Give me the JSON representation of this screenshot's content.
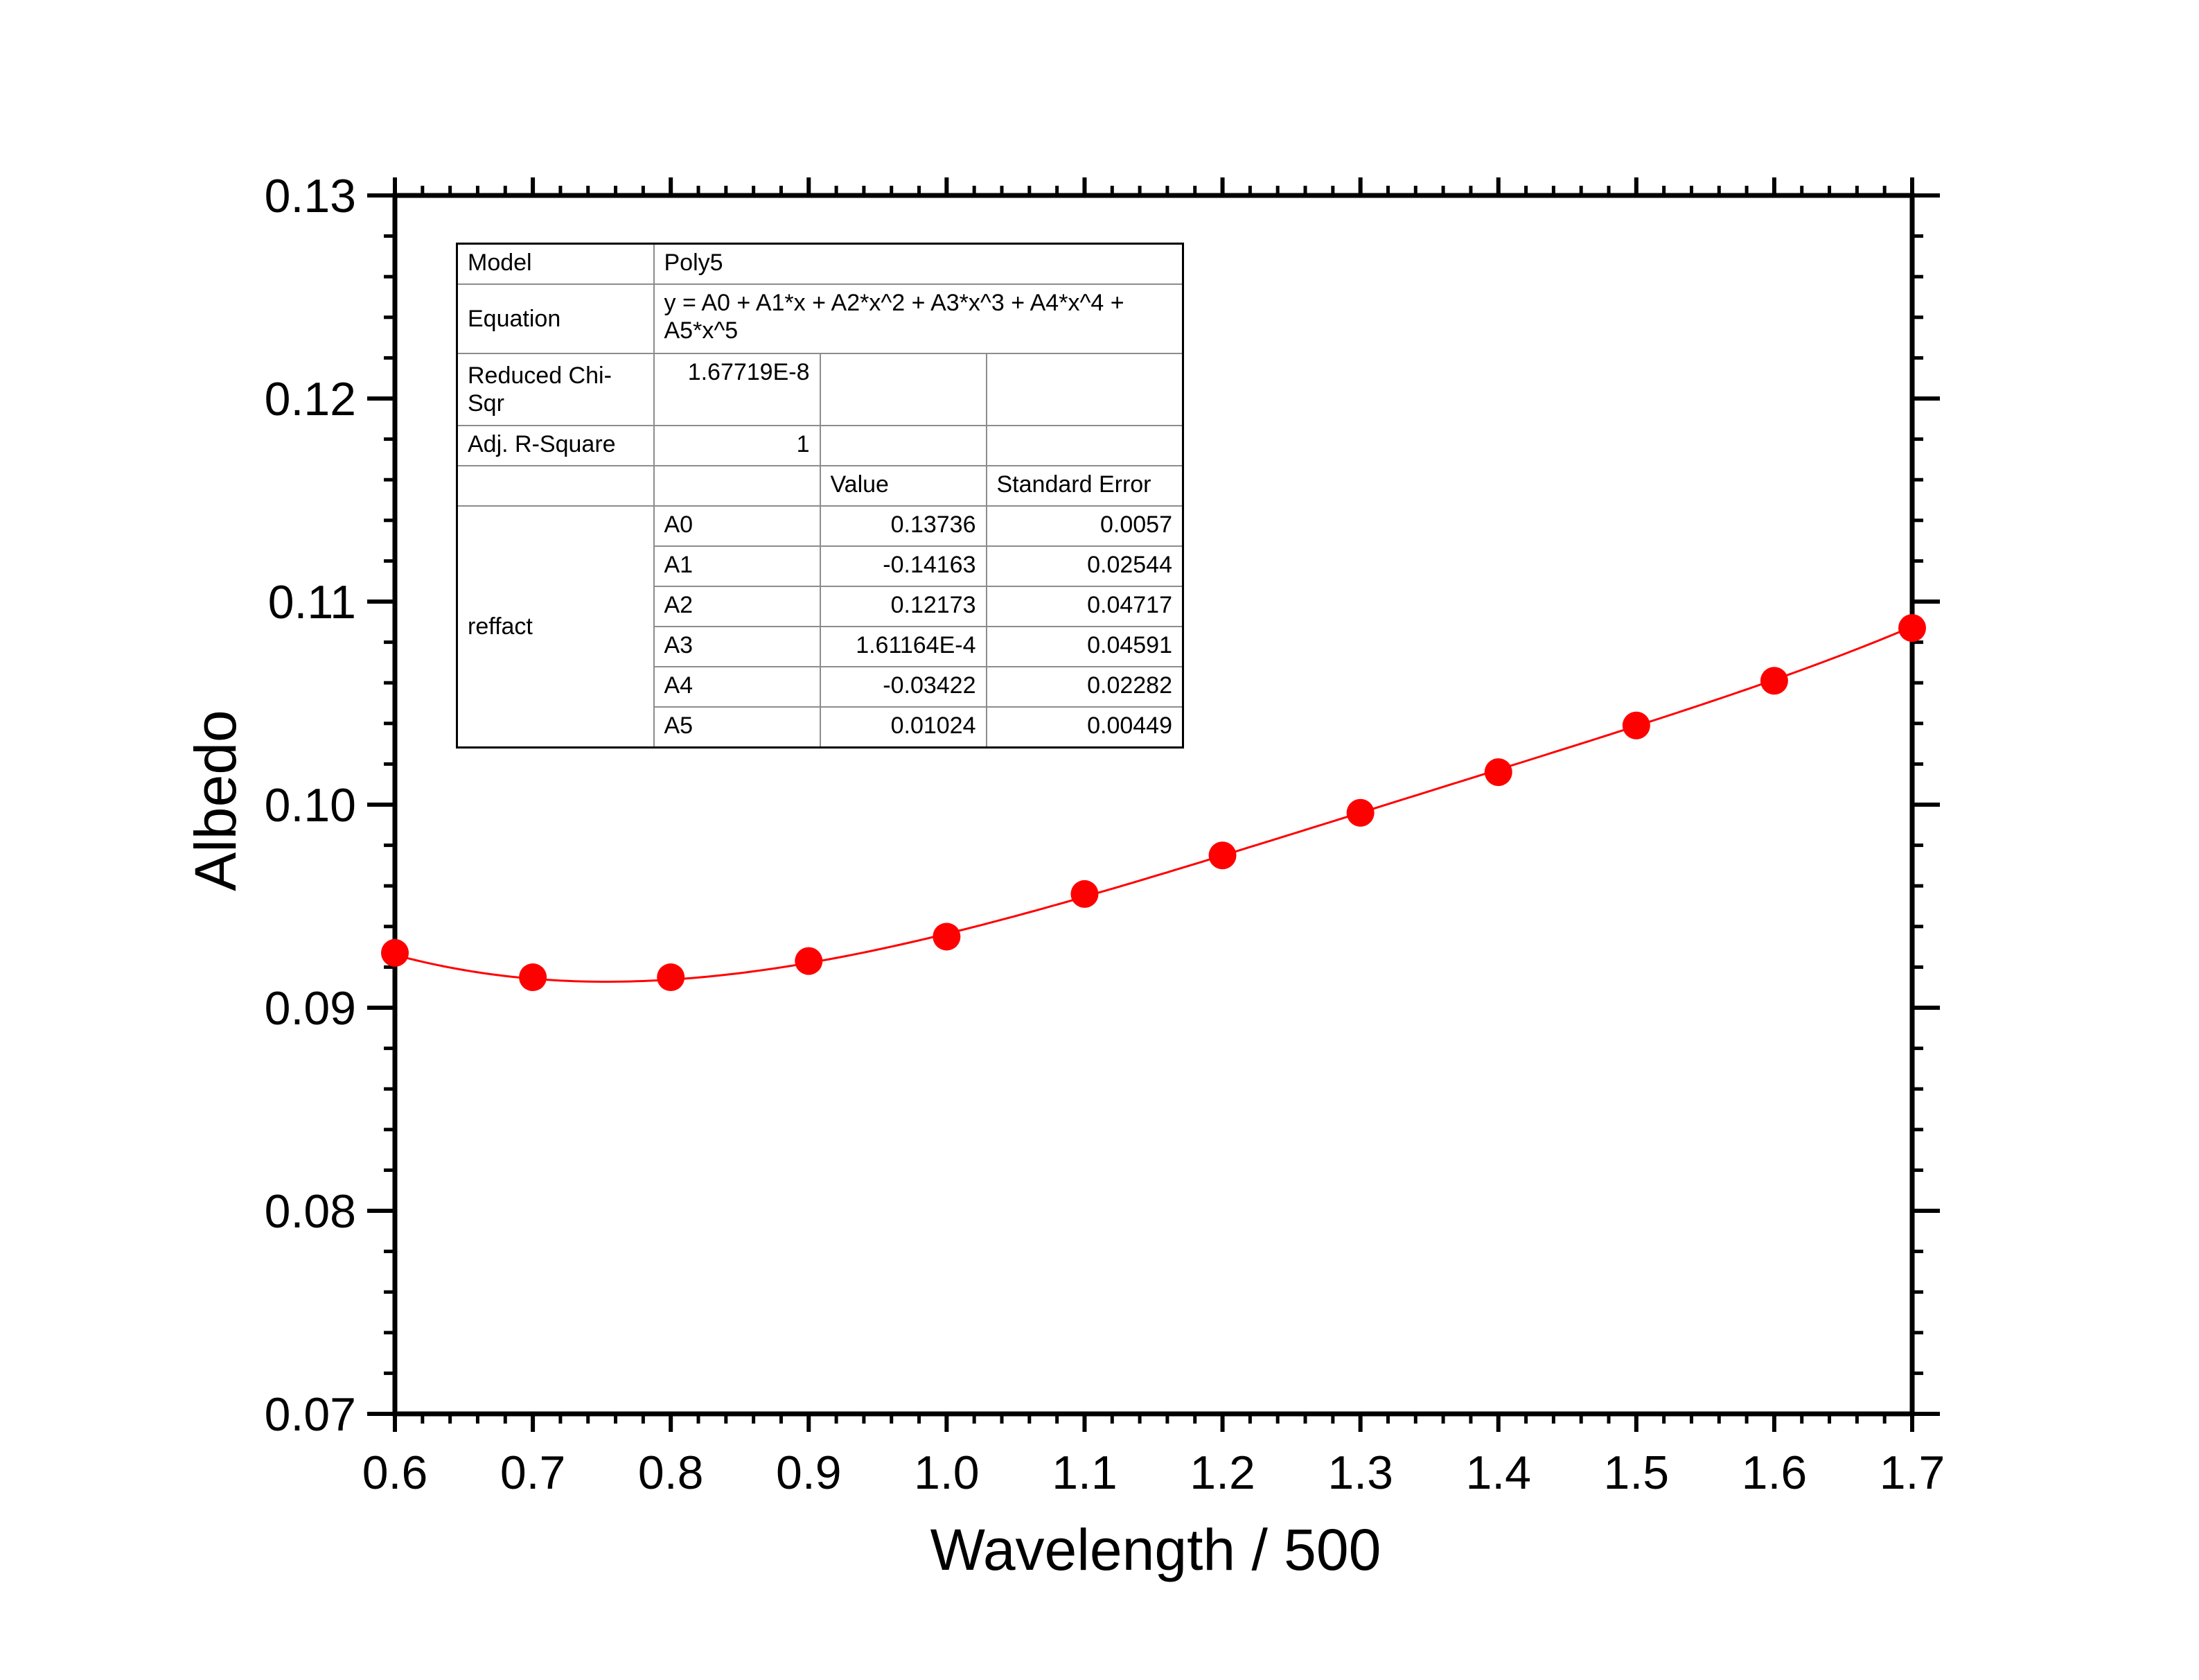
{
  "colors": {
    "series": "#ff0000",
    "axis": "#000000",
    "table_grid": "#8c8c8c"
  },
  "chart_data": {
    "type": "scatter",
    "xlabel": "Wavelength / 500",
    "ylabel": "Albedo",
    "xlim": [
      0.6,
      1.7
    ],
    "ylim": [
      0.07,
      0.13
    ],
    "x_ticks": [
      "0.6",
      "0.7",
      "0.8",
      "0.9",
      "1.0",
      "1.1",
      "1.2",
      "1.3",
      "1.4",
      "1.5",
      "1.6",
      "1.7"
    ],
    "y_ticks": [
      "0.07",
      "0.08",
      "0.09",
      "0.10",
      "0.11",
      "0.12",
      "0.13"
    ],
    "grid": false,
    "series": [
      {
        "x": [
          0.6,
          0.7,
          0.8,
          0.9,
          1.0,
          1.1,
          1.2,
          1.3,
          1.4,
          1.5,
          1.6,
          1.7
        ],
        "y": [
          0.0927,
          0.0915,
          0.0915,
          0.0923,
          0.0935,
          0.0956,
          0.0975,
          0.0996,
          0.1016,
          0.1039,
          0.1061,
          0.1087
        ],
        "marker": "circle",
        "color": "#ff0000"
      }
    ],
    "fit": {
      "model": "Poly5",
      "coefficients": [
        0.13736,
        -0.14163,
        0.12173,
        0.000161164,
        -0.03422,
        0.01024
      ],
      "color": "#ff0000"
    }
  },
  "fit_table": {
    "model_label": "Model",
    "model_value": "Poly5",
    "equation_label": "Equation",
    "equation_value": "y = A0 + A1*x + A2*x^2 + A3*x^3 + A4*x^4 + A5*x^5",
    "chi_label": "Reduced Chi-Sqr",
    "chi_value": "1.67719E-8",
    "r2_label": "Adj. R-Square",
    "r2_value": "1",
    "value_header": "Value",
    "error_header": "Standard Error",
    "group_label": "reffact",
    "params": [
      {
        "name": "A0",
        "value": "0.13736",
        "error": "0.0057"
      },
      {
        "name": "A1",
        "value": "-0.14163",
        "error": "0.02544"
      },
      {
        "name": "A2",
        "value": "0.12173",
        "error": "0.04717"
      },
      {
        "name": "A3",
        "value": "1.61164E-4",
        "error": "0.04591"
      },
      {
        "name": "A4",
        "value": "-0.03422",
        "error": "0.02282"
      },
      {
        "name": "A5",
        "value": "0.01024",
        "error": "0.00449"
      }
    ]
  }
}
